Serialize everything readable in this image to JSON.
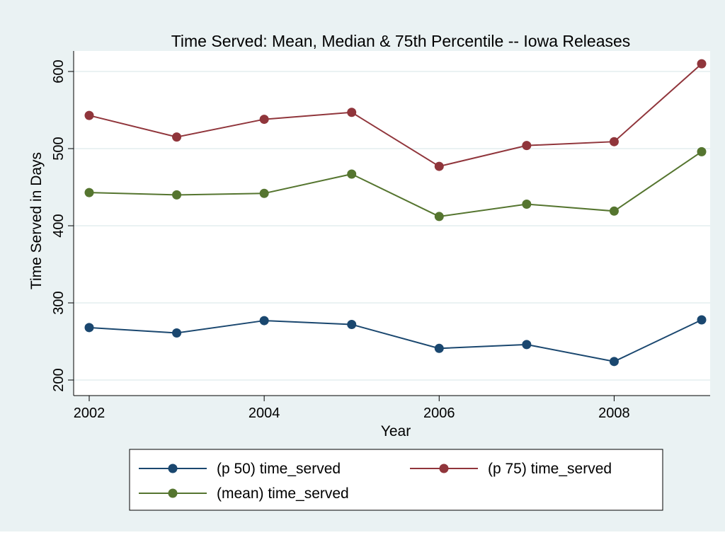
{
  "chart_data": {
    "type": "line",
    "title": "Time Served: Mean, Median & 75th Percentile -- Iowa Releases",
    "xlabel": "Year",
    "ylabel": "Time Served in Days",
    "x": [
      2002,
      2003,
      2004,
      2005,
      2006,
      2007,
      2008,
      2009
    ],
    "xticks": [
      2002,
      2004,
      2006,
      2008
    ],
    "yticks": [
      200,
      300,
      400,
      500,
      600
    ],
    "xlim": [
      2002,
      2009
    ],
    "ylim": [
      190,
      620
    ],
    "grid": true,
    "legend_position": "bottom",
    "series": [
      {
        "name": "(p 50) time_served",
        "color": "#1a476f",
        "values": [
          268,
          261,
          277,
          272,
          241,
          246,
          224,
          278
        ]
      },
      {
        "name": "(p 75) time_served",
        "color": "#90353b",
        "values": [
          543,
          515,
          538,
          547,
          477,
          504,
          509,
          610
        ]
      },
      {
        "name": "(mean) time_served",
        "color": "#55752f",
        "values": [
          443,
          440,
          442,
          467,
          412,
          428,
          419,
          496
        ]
      }
    ],
    "colors": {
      "outer_background": "#eaf2f3",
      "plot_background": "#ffffff",
      "grid": "#eaf2f3"
    }
  }
}
